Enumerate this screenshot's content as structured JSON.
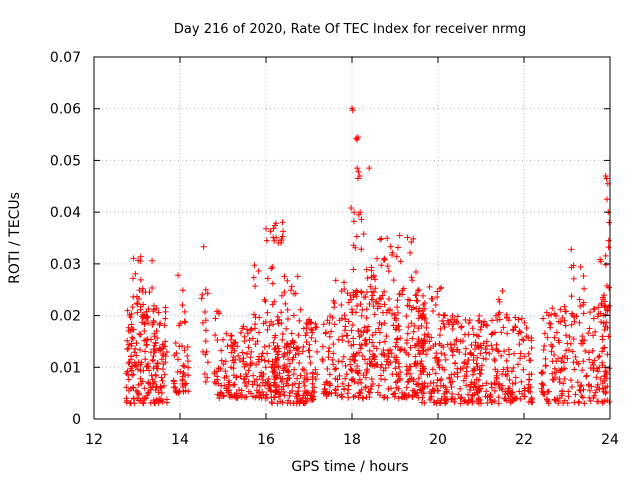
{
  "chart_data": {
    "type": "scatter",
    "title": "Day 216 of 2020, Rate Of TEC Index for receiver nrmg",
    "xlabel": "GPS time / hours",
    "ylabel": "ROTI / TECUs",
    "xlim": [
      12,
      24
    ],
    "ylim": [
      0,
      0.07
    ],
    "xticks": [
      "12",
      "14",
      "16",
      "18",
      "20",
      "22",
      "24"
    ],
    "yticks": [
      "0",
      "0.01",
      "0.02",
      "0.03",
      "0.04",
      "0.05",
      "0.06",
      "0.07"
    ],
    "grid": true,
    "marker": "+",
    "series": [
      {
        "name": "ROTI",
        "color": "#ff0000",
        "clusters": [
          {
            "x_range": [
              12.75,
              13.7
            ],
            "y_range": [
              0.003,
              0.022
            ],
            "n": 200
          },
          {
            "x_range": [
              12.9,
              13.1
            ],
            "y_range": [
              0.022,
              0.032
            ],
            "n": 14
          },
          {
            "x_range": [
              13.1,
              13.5
            ],
            "y_range": [
              0.02,
              0.026
            ],
            "n": 10
          },
          {
            "x_range": [
              13.85,
              14.2
            ],
            "y_range": [
              0.005,
              0.015
            ],
            "n": 40
          },
          {
            "x_range": [
              13.95,
              14.15
            ],
            "y_range": [
              0.018,
              0.028
            ],
            "n": 8
          },
          {
            "x_range": [
              14.5,
              14.7
            ],
            "y_range": [
              0.005,
              0.025
            ],
            "n": 15
          },
          {
            "x_range": [
              14.8,
              15.0
            ],
            "y_range": [
              0.004,
              0.023
            ],
            "n": 25
          },
          {
            "x_range": [
              15.0,
              16.3
            ],
            "y_range": [
              0.004,
              0.018
            ],
            "n": 170
          },
          {
            "x_range": [
              15.7,
              16.2
            ],
            "y_range": [
              0.018,
              0.03
            ],
            "n": 20
          },
          {
            "x_range": [
              16.1,
              17.2
            ],
            "y_range": [
              0.003,
              0.02
            ],
            "n": 200
          },
          {
            "x_range": [
              16.1,
              16.4
            ],
            "y_range": [
              0.034,
              0.039
            ],
            "n": 14
          },
          {
            "x_range": [
              16.3,
              16.9
            ],
            "y_range": [
              0.02,
              0.028
            ],
            "n": 14
          },
          {
            "x_range": [
              17.3,
              17.8
            ],
            "y_range": [
              0.004,
              0.02
            ],
            "n": 60
          },
          {
            "x_range": [
              17.5,
              18.0
            ],
            "y_range": [
              0.02,
              0.028
            ],
            "n": 12
          },
          {
            "x_range": [
              17.8,
              19.7
            ],
            "y_range": [
              0.004,
              0.025
            ],
            "n": 350
          },
          {
            "x_range": [
              18.0,
              19.5
            ],
            "y_range": [
              0.024,
              0.036
            ],
            "n": 50
          },
          {
            "x_range": [
              18.0,
              18.35
            ],
            "y_range": [
              0.035,
              0.04
            ],
            "n": 6
          },
          {
            "x_range": [
              19.6,
              21.0
            ],
            "y_range": [
              0.003,
              0.02
            ],
            "n": 220
          },
          {
            "x_range": [
              19.8,
              20.2
            ],
            "y_range": [
              0.02,
              0.026
            ],
            "n": 12
          },
          {
            "x_range": [
              20.9,
              22.2
            ],
            "y_range": [
              0.003,
              0.02
            ],
            "n": 180
          },
          {
            "x_range": [
              21.4,
              21.7
            ],
            "y_range": [
              0.02,
              0.026
            ],
            "n": 6
          },
          {
            "x_range": [
              22.4,
              24.0
            ],
            "y_range": [
              0.003,
              0.022
            ],
            "n": 220
          },
          {
            "x_range": [
              23.1,
              23.4
            ],
            "y_range": [
              0.022,
              0.03
            ],
            "n": 10
          },
          {
            "x_range": [
              23.75,
              24.0
            ],
            "y_range": [
              0.02,
              0.034
            ],
            "n": 20
          }
        ],
        "points": [
          [
            14.55,
            0.0333
          ],
          [
            18.0,
            0.0601
          ],
          [
            18.02,
            0.0597
          ],
          [
            18.1,
            0.0543
          ],
          [
            18.12,
            0.054
          ],
          [
            18.14,
            0.0545
          ],
          [
            18.12,
            0.0485
          ],
          [
            18.15,
            0.0478
          ],
          [
            18.18,
            0.047
          ],
          [
            18.14,
            0.0465
          ],
          [
            18.4,
            0.0485
          ],
          [
            17.98,
            0.0408
          ],
          [
            16.0,
            0.0368
          ],
          [
            16.02,
            0.0345
          ],
          [
            23.9,
            0.047
          ],
          [
            23.92,
            0.0465
          ],
          [
            23.95,
            0.0455
          ],
          [
            23.93,
            0.0425
          ],
          [
            23.96,
            0.04
          ],
          [
            23.98,
            0.038
          ],
          [
            23.97,
            0.0345
          ],
          [
            23.1,
            0.0328
          ],
          [
            13.35,
            0.0306
          ],
          [
            14.6,
            0.025
          ]
        ]
      }
    ]
  }
}
